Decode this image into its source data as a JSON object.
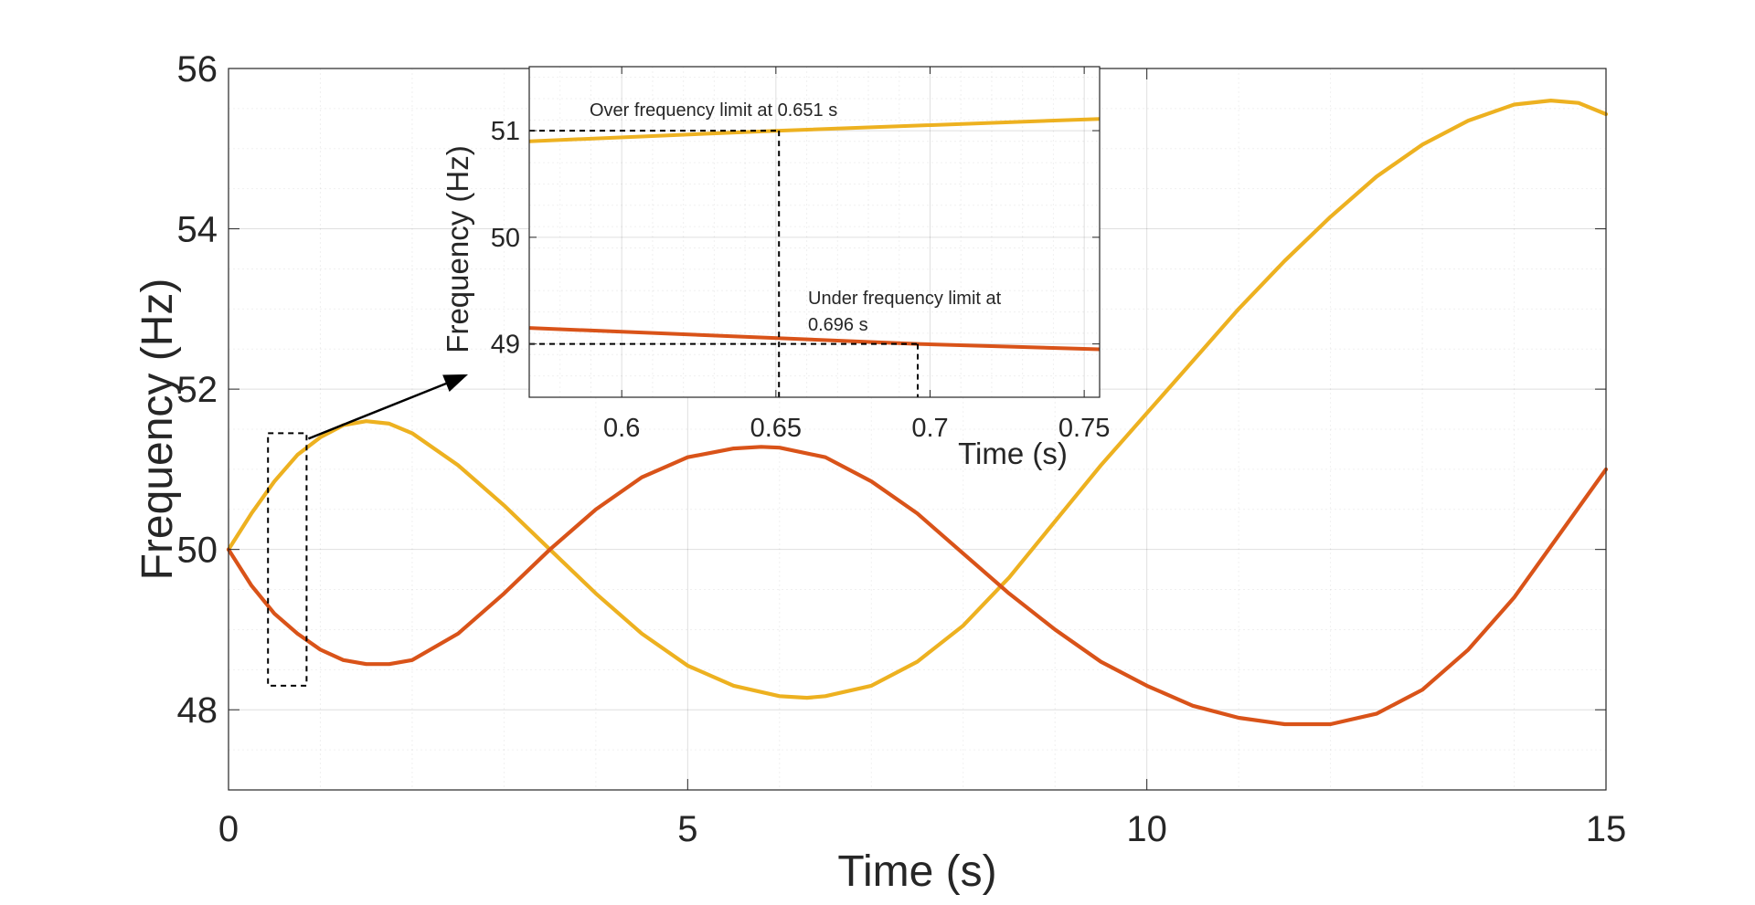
{
  "chart_data": [
    {
      "type": "line",
      "title": "",
      "xlabel": "Time (s)",
      "ylabel": "Frequency (Hz)",
      "xlim": [
        0,
        15
      ],
      "ylim": [
        47,
        56
      ],
      "xticks": [
        0,
        5,
        10,
        15
      ],
      "yticks": [
        48,
        50,
        52,
        54,
        56
      ],
      "grid": "on (major and minor)",
      "legend": "none",
      "series": [
        {
          "color": "#EDB120",
          "x": [
            0,
            0.25,
            0.5,
            0.75,
            1.0,
            1.25,
            1.5,
            1.75,
            2.0,
            2.5,
            3.0,
            3.5,
            4.0,
            4.5,
            5.0,
            5.5,
            6.0,
            6.3,
            6.5,
            7.0,
            7.5,
            8.0,
            8.5,
            9.0,
            9.5,
            10.0,
            10.5,
            11.0,
            11.5,
            12.0,
            12.5,
            13.0,
            13.5,
            14.0,
            14.4,
            14.7,
            15.0
          ],
          "y": [
            50.0,
            50.45,
            50.85,
            51.18,
            51.4,
            51.55,
            51.6,
            51.57,
            51.45,
            51.05,
            50.55,
            50.0,
            49.45,
            48.95,
            48.55,
            48.3,
            48.17,
            48.15,
            48.17,
            48.3,
            48.6,
            49.05,
            49.65,
            50.35,
            51.05,
            51.7,
            52.35,
            53.0,
            53.6,
            54.15,
            54.65,
            55.05,
            55.35,
            55.55,
            55.6,
            55.57,
            55.43
          ]
        },
        {
          "color": "#D95319",
          "x": [
            0,
            0.25,
            0.5,
            0.75,
            1.0,
            1.25,
            1.5,
            1.75,
            2.0,
            2.5,
            3.0,
            3.5,
            4.0,
            4.5,
            5.0,
            5.5,
            5.8,
            6.0,
            6.5,
            7.0,
            7.5,
            8.0,
            8.5,
            9.0,
            9.5,
            10.0,
            10.5,
            11.0,
            11.5,
            12.0,
            12.5,
            13.0,
            13.5,
            14.0,
            14.5,
            15.0
          ],
          "y": [
            50.0,
            49.55,
            49.2,
            48.95,
            48.75,
            48.62,
            48.57,
            48.57,
            48.62,
            48.95,
            49.45,
            50.0,
            50.5,
            50.9,
            51.15,
            51.26,
            51.28,
            51.27,
            51.15,
            50.85,
            50.45,
            49.95,
            49.45,
            49.0,
            48.6,
            48.3,
            48.05,
            47.9,
            47.82,
            47.82,
            47.95,
            48.25,
            48.75,
            49.4,
            50.2,
            51.0
          ]
        }
      ],
      "annotations": [
        {
          "type": "dashed-rectangle",
          "x_range": [
            0.43,
            0.85
          ],
          "y_range": [
            48.3,
            51.45
          ]
        }
      ]
    },
    {
      "type": "line",
      "title": "",
      "xlabel": "Time (s)",
      "ylabel": "Frequency (Hz)",
      "xlim": [
        0.57,
        0.755
      ],
      "ylim": [
        48.5,
        51.6
      ],
      "xticks": [
        0.6,
        0.65,
        0.7,
        0.75
      ],
      "yticks": [
        49,
        50,
        51
      ],
      "grid": "on (major and minor)",
      "series": [
        {
          "color": "#EDB120",
          "x": [
            0.57,
            0.651,
            0.755
          ],
          "y": [
            50.9,
            51.0,
            51.11
          ]
        },
        {
          "color": "#D95319",
          "x": [
            0.57,
            0.696,
            0.755
          ],
          "y": [
            49.15,
            49.0,
            48.95
          ]
        }
      ],
      "annotations": [
        {
          "text": "Over frequency limit at 0.651 s",
          "x": 0.651,
          "y": 51.0
        },
        {
          "text_line1": "Under frequency limit at",
          "text_line2": "0.696 s",
          "x": 0.696,
          "y": 49.0
        }
      ]
    }
  ]
}
